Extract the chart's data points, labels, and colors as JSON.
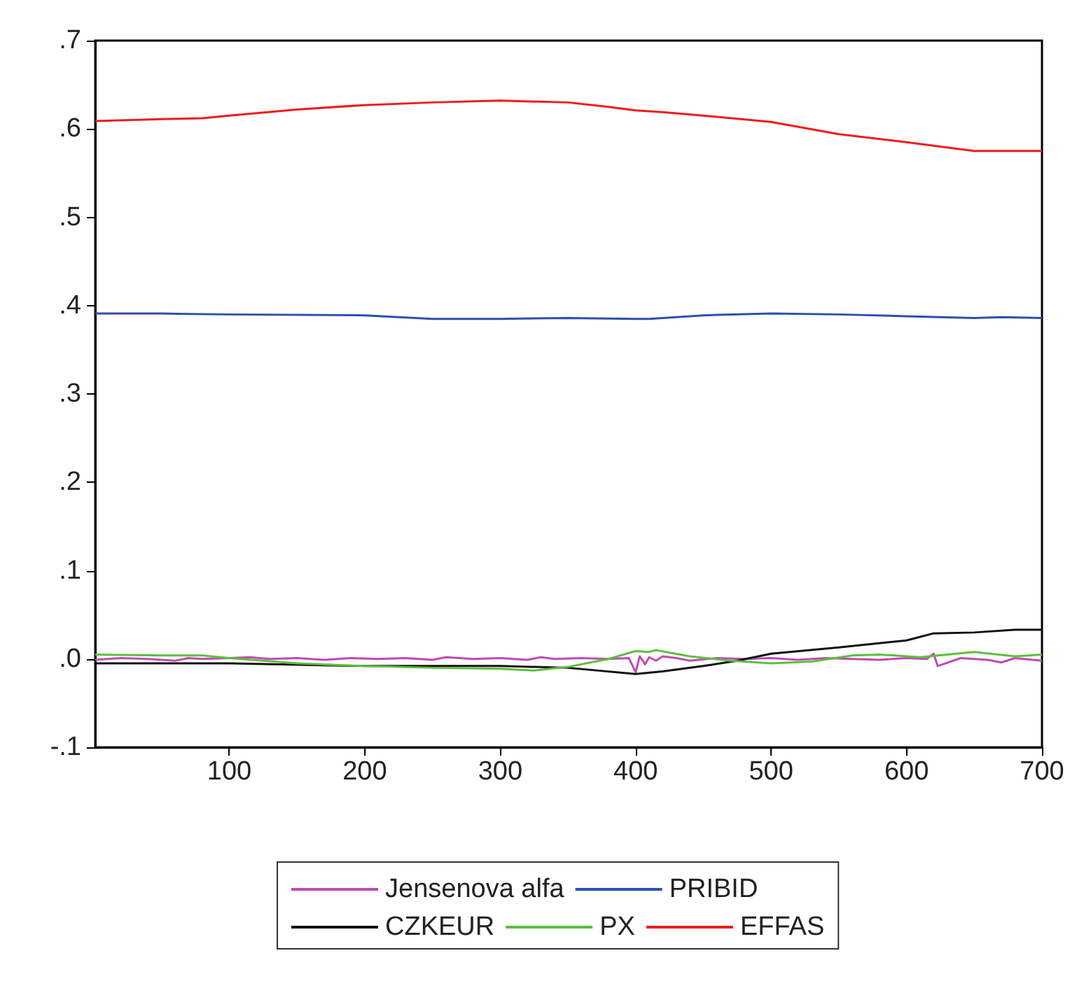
{
  "chart_data": {
    "type": "line",
    "xlim": [
      1,
      700
    ],
    "ylim": [
      -0.1,
      0.7
    ],
    "xticks": [
      100,
      200,
      300,
      400,
      500,
      600,
      700
    ],
    "yticks": [
      {
        "value": -0.1,
        "label": "-.1"
      },
      {
        "value": 0,
        "label": ".0"
      },
      {
        "value": 0.1,
        "label": ".1"
      },
      {
        "value": 0.2,
        "label": ".2"
      },
      {
        "value": 0.3,
        "label": ".3"
      },
      {
        "value": 0.4,
        "label": ".4"
      },
      {
        "value": 0.5,
        "label": ".5"
      },
      {
        "value": 0.6,
        "label": ".6"
      },
      {
        "value": 0.7,
        "label": ".7"
      }
    ],
    "grid": false,
    "legend": "bottom",
    "marker": "none",
    "line_style": "solid",
    "series": [
      {
        "name": "Jensenova alfa",
        "color": "#c04ab4",
        "x": [
          1,
          20,
          40,
          60,
          70,
          80,
          100,
          115,
          130,
          150,
          170,
          190,
          210,
          230,
          250,
          260,
          280,
          300,
          320,
          330,
          340,
          360,
          380,
          395,
          400,
          403,
          407,
          410,
          415,
          420,
          430,
          440,
          460,
          480,
          500,
          520,
          540,
          560,
          580,
          600,
          615,
          620,
          623,
          640,
          660,
          670,
          680,
          700
        ],
        "values": [
          -0.001,
          0.001,
          0,
          -0.002,
          0.001,
          0,
          0.001,
          0.002,
          0,
          0.001,
          -0.001,
          0.001,
          0,
          0.001,
          -0.001,
          0.002,
          0,
          0.001,
          -0.001,
          0.002,
          0,
          0.001,
          0,
          0.001,
          -0.015,
          0.003,
          -0.006,
          0.002,
          -0.002,
          0.003,
          0.001,
          -0.002,
          0.001,
          0,
          0.001,
          -0.001,
          0.001,
          0,
          -0.001,
          0.001,
          0,
          0.006,
          -0.008,
          0.001,
          -0.001,
          -0.004,
          0.001,
          -0.002
        ]
      },
      {
        "name": "PRIBID",
        "color": "#2e4fb0",
        "x": [
          1,
          50,
          100,
          200,
          250,
          300,
          350,
          400,
          410,
          450,
          500,
          550,
          600,
          650,
          670,
          700
        ],
        "values": [
          0.391,
          0.391,
          0.39,
          0.389,
          0.385,
          0.385,
          0.386,
          0.385,
          0.385,
          0.389,
          0.391,
          0.39,
          0.388,
          0.386,
          0.387,
          0.386
        ]
      },
      {
        "name": "CZKEUR",
        "color": "#111111",
        "x": [
          1,
          100,
          200,
          300,
          350,
          400,
          420,
          450,
          475,
          500,
          550,
          600,
          620,
          650,
          680,
          700
        ],
        "values": [
          -0.005,
          -0.005,
          -0.008,
          -0.008,
          -0.01,
          -0.017,
          -0.014,
          -0.008,
          -0.002,
          0.006,
          0.013,
          0.021,
          0.029,
          0.03,
          0.033,
          0.033
        ]
      },
      {
        "name": "PX",
        "color": "#5cbf3c",
        "x": [
          1,
          50,
          80,
          100,
          150,
          200,
          250,
          300,
          325,
          350,
          380,
          400,
          410,
          415,
          440,
          470,
          500,
          530,
          560,
          580,
          610,
          650,
          680,
          700
        ],
        "values": [
          0.005,
          0.004,
          0.004,
          0.001,
          -0.005,
          -0.008,
          -0.01,
          -0.011,
          -0.013,
          -0.009,
          0,
          0.009,
          0.008,
          0.01,
          0.003,
          -0.002,
          -0.005,
          -0.003,
          0.004,
          0.005,
          0.002,
          0.008,
          0.003,
          0.005
        ]
      },
      {
        "name": "EFFAS",
        "color": "#ee1c1c",
        "x": [
          1,
          50,
          80,
          100,
          150,
          200,
          250,
          300,
          350,
          380,
          400,
          420,
          450,
          500,
          550,
          600,
          650,
          700
        ],
        "values": [
          0.609,
          0.611,
          0.612,
          0.615,
          0.622,
          0.627,
          0.63,
          0.632,
          0.63,
          0.625,
          0.621,
          0.619,
          0.615,
          0.608,
          0.594,
          0.585,
          0.575,
          0.575
        ]
      }
    ]
  }
}
